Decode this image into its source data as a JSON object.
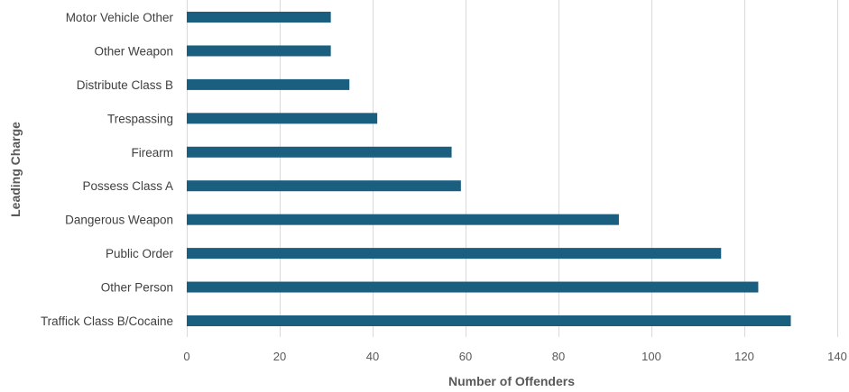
{
  "chart_data": {
    "type": "bar",
    "orientation": "horizontal",
    "categories": [
      "Traffick Class B/Cocaine",
      "Other Person",
      "Public Order",
      "Dangerous Weapon",
      "Possess Class A",
      "Firearm",
      "Trespassing",
      "Distribute Class B",
      "Other Weapon",
      "Motor Vehicle Other"
    ],
    "values": [
      130,
      123,
      115,
      93,
      59,
      57,
      41,
      35,
      31,
      31
    ],
    "xlabel": "Number of Offenders",
    "ylabel": "Leading Charge",
    "xlim": [
      0,
      140
    ],
    "xticks": [
      "0",
      "20",
      "40",
      "60",
      "80",
      "100",
      "120",
      "140"
    ],
    "grid": true,
    "legend": "none",
    "bar_color": "#1b5f80",
    "grid_color": "#d9d9d9"
  }
}
